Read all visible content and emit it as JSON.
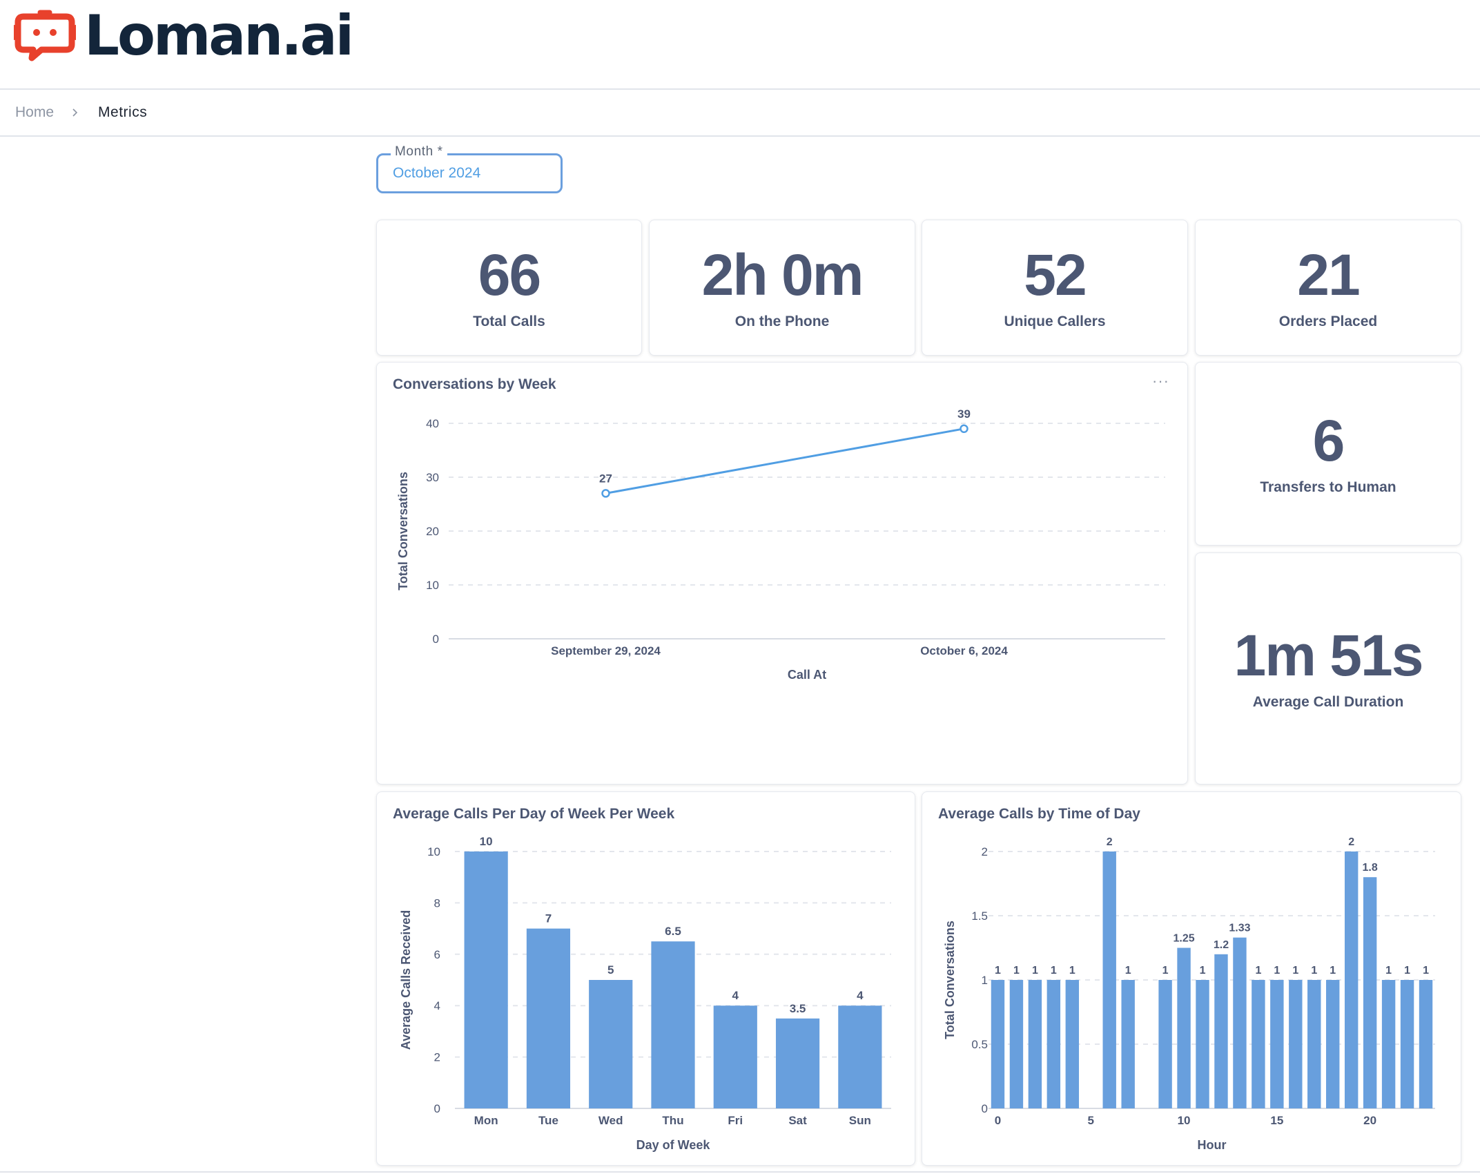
{
  "app": {
    "brand": "Loman.ai",
    "brand_color": "#e8412c",
    "text_color": "#13253a"
  },
  "breadcrumb": {
    "home": "Home",
    "current": "Metrics"
  },
  "filter": {
    "label": "Month *",
    "value": "October 2024"
  },
  "scalars": {
    "total_calls": {
      "value": "66",
      "label": "Total Calls"
    },
    "on_phone": {
      "value": "2h 0m",
      "label": "On the Phone"
    },
    "unique_callers": {
      "value": "52",
      "label": "Unique Callers"
    },
    "orders_placed": {
      "value": "21",
      "label": "Orders Placed"
    },
    "transfers": {
      "value": "6",
      "label": "Transfers to Human"
    },
    "avg_duration": {
      "value": "1m 51s",
      "label": "Average Call Duration"
    }
  },
  "cards": {
    "weekly_title": "Conversations by Week",
    "dow_title": "Average Calls Per Day of Week Per Week",
    "tod_title": "Average Calls by Time of Day",
    "more_icon": "···"
  },
  "chart_data": [
    {
      "id": "weekly",
      "type": "line",
      "title": "Conversations by Week",
      "categories": [
        "September 29, 2024",
        "October 6, 2024"
      ],
      "values": [
        27,
        39
      ],
      "labels": [
        "27",
        "39"
      ],
      "xlabel": "Call At",
      "ylabel": "Total Conversations",
      "ylim": [
        0,
        40
      ],
      "yticks": [
        0,
        10,
        20,
        30,
        40
      ],
      "color": "#509ee3"
    },
    {
      "id": "dow",
      "type": "bar",
      "title": "Average Calls Per Day of Week Per Week",
      "categories": [
        "Mon",
        "Tue",
        "Wed",
        "Thu",
        "Fri",
        "Sat",
        "Sun"
      ],
      "values": [
        10,
        7,
        5,
        6.5,
        4,
        3.5,
        4
      ],
      "labels": [
        "10",
        "7",
        "5",
        "6.5",
        "4",
        "3.5",
        "4"
      ],
      "xlabel": "Day of Week",
      "ylabel": "Average Calls Received",
      "ylim": [
        0,
        10
      ],
      "yticks": [
        0,
        2,
        4,
        6,
        8,
        10
      ],
      "color": "#689fdd"
    },
    {
      "id": "tod",
      "type": "bar",
      "title": "Average Calls by Time of Day",
      "x": [
        0,
        1,
        2,
        3,
        4,
        6,
        7,
        9,
        10,
        11,
        12,
        13,
        14,
        15,
        16,
        17,
        18,
        19,
        20,
        21,
        22,
        23
      ],
      "values": [
        1,
        1,
        1,
        1,
        1,
        2,
        1,
        1,
        1.25,
        1,
        1.2,
        1.33,
        1,
        1,
        1,
        1,
        1,
        2,
        1.8,
        1,
        1,
        1
      ],
      "labels": [
        "1",
        "1",
        "1",
        "1",
        "1",
        "2",
        "1",
        "1",
        "1.25",
        "1",
        "1.2",
        "1.33",
        "1",
        "1",
        "1",
        "1",
        "1",
        "2",
        "1.8",
        "1",
        "1",
        "1"
      ],
      "xlabel": "Hour",
      "ylabel": "Total Conversations",
      "xlim": [
        0,
        23
      ],
      "xticks": [
        0,
        5,
        10,
        15,
        20
      ],
      "ylim": [
        0,
        2
      ],
      "yticks": [
        "0",
        "0.5",
        "1",
        "1.5",
        "2"
      ],
      "color": "#689fdd"
    }
  ]
}
